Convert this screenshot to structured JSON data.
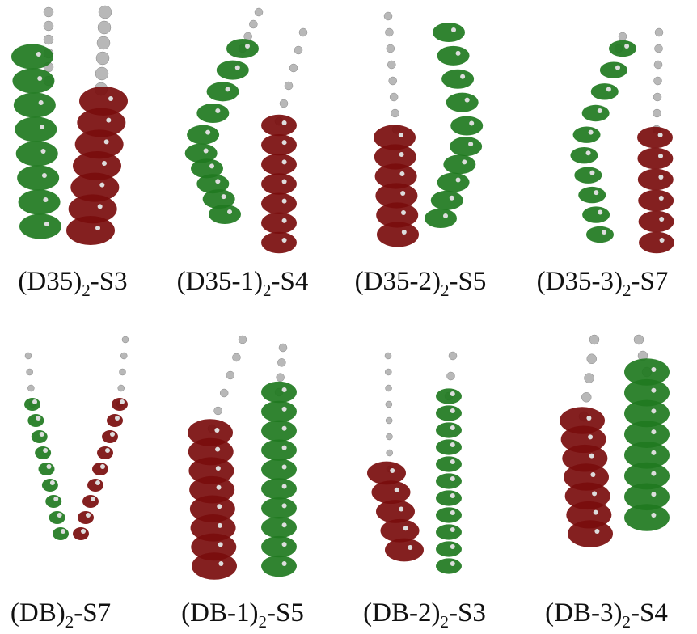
{
  "panels": [
    {
      "label": {
        "prefix": "(D35)",
        "subscript": "2",
        "suffix": "-S3"
      }
    },
    {
      "label": {
        "prefix": "(D35-1)",
        "subscript": "2",
        "suffix": "-S4"
      }
    },
    {
      "label": {
        "prefix": "(D35-2)",
        "subscript": "2",
        "suffix": "-S5"
      }
    },
    {
      "label": {
        "prefix": "(D35-3)",
        "subscript": "2",
        "suffix": "-S7"
      }
    },
    {
      "label": {
        "prefix": "(DB)",
        "subscript": "2",
        "suffix": "-S7"
      }
    },
    {
      "label": {
        "prefix": "(DB-1)",
        "subscript": "2",
        "suffix": "-S5"
      }
    },
    {
      "label": {
        "prefix": "(DB-2)",
        "subscript": "2",
        "suffix": "-S3"
      }
    },
    {
      "label": {
        "prefix": "(DB-3)",
        "subscript": "2",
        "suffix": "-S4"
      }
    }
  ]
}
